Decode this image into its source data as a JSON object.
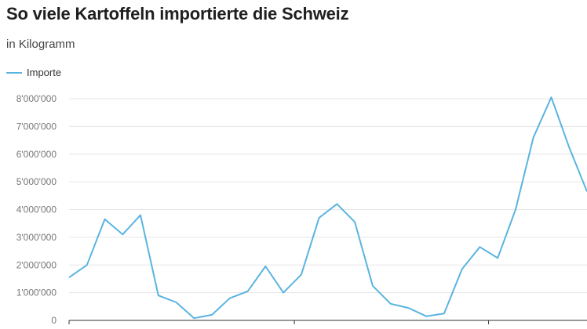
{
  "chart_data": {
    "type": "line",
    "title": "So viele Kartoffeln importierte die Schweiz",
    "subtitle": "in Kilogramm",
    "xlabel": "",
    "ylabel": "",
    "ylim": [
      0,
      8000000
    ],
    "y_ticks": [
      {
        "value": 0,
        "label": "0"
      },
      {
        "value": 1000000,
        "label": "1'000'000"
      },
      {
        "value": 2000000,
        "label": "2'000'000"
      },
      {
        "value": 3000000,
        "label": "3'000'000"
      },
      {
        "value": 4000000,
        "label": "4'000'000"
      },
      {
        "value": 5000000,
        "label": "5'000'000"
      },
      {
        "value": 6000000,
        "label": "6'000'000"
      },
      {
        "value": 7000000,
        "label": "7'000'000"
      },
      {
        "value": 8000000,
        "label": "8'000'000"
      }
    ],
    "grid": true,
    "legend": "top-left",
    "series": [
      {
        "name": "Importe",
        "color": "#5ab4e0",
        "values": [
          1550000,
          2000000,
          3650000,
          3100000,
          3800000,
          900000,
          650000,
          80000,
          200000,
          800000,
          1050000,
          1950000,
          1000000,
          1650000,
          3700000,
          4200000,
          3550000,
          1250000,
          600000,
          450000,
          150000,
          250000,
          1850000,
          2650000,
          2250000,
          4000000,
          6600000,
          8050000,
          6250000,
          4650000
        ]
      }
    ]
  }
}
